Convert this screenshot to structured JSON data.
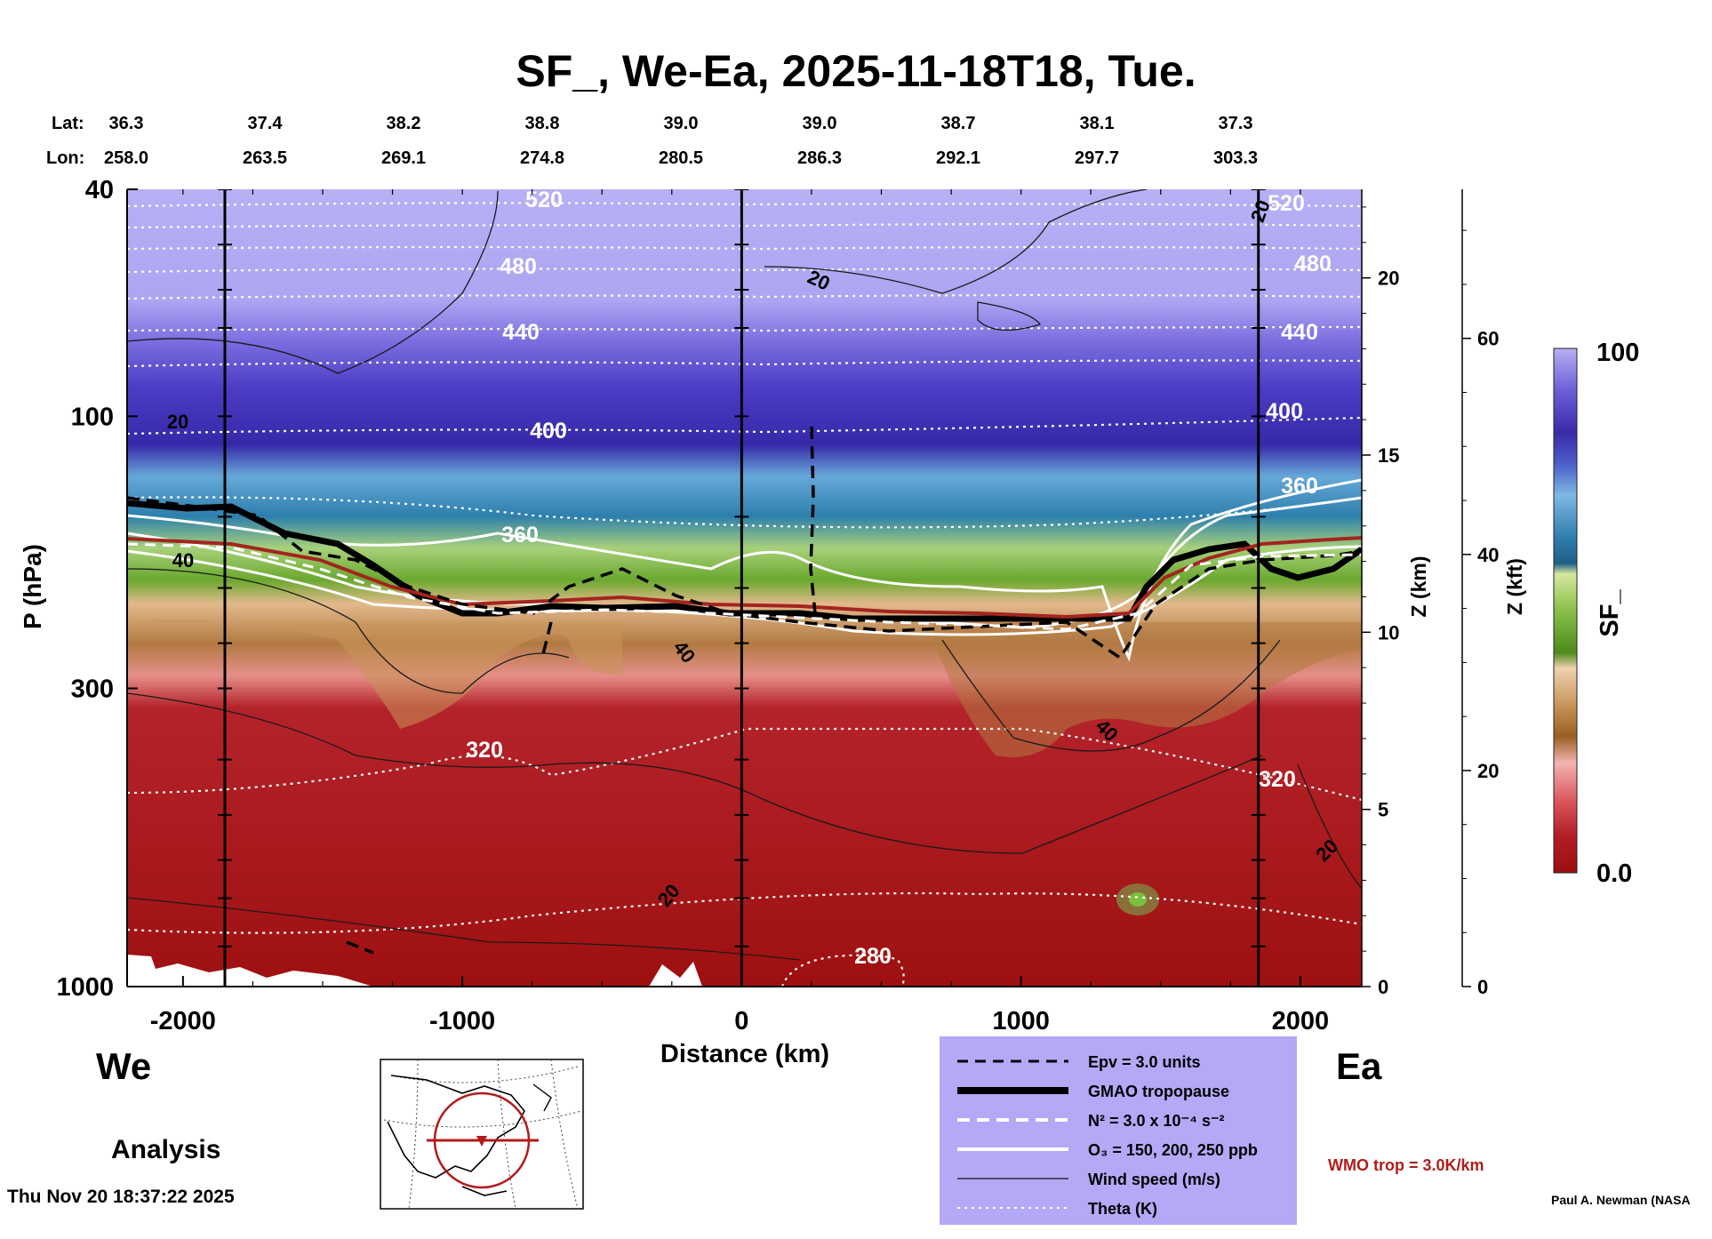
{
  "chart_data": {
    "type": "cross-section",
    "title": "SF_, We-Ea, 2025-11-18T18, Tue.",
    "xlabel": "Distance (km)",
    "ylabel": "P (hPa)",
    "xlim": [
      -2200,
      2220
    ],
    "ylim_hpa": [
      1000,
      40
    ],
    "yscale": "log",
    "x_ticks": [
      -2000,
      -1000,
      0,
      1000,
      2000
    ],
    "x_tick_labels": [
      "-2000",
      "-1000",
      "0",
      "1000",
      "2000"
    ],
    "y_ticks": [
      40,
      100,
      300,
      1000
    ],
    "y_tick_labels": [
      "40",
      "100",
      "300",
      "1000"
    ],
    "vertical_lines_km": [
      -1850,
      0,
      1850
    ],
    "lat_label": "Lat:",
    "lon_label": "Lon:",
    "lat_values": [
      "36.3",
      "37.4",
      "38.2",
      "38.8",
      "39.0",
      "39.0",
      "38.7",
      "38.1",
      "37.3"
    ],
    "lon_values": [
      "258.0",
      "263.5",
      "269.1",
      "274.8",
      "280.5",
      "286.3",
      "292.1",
      "297.7",
      "303.3"
    ],
    "z_km_axis": {
      "label": "Z (km)",
      "ticks": [
        0,
        5,
        10,
        15,
        20
      ]
    },
    "z_kft_axis": {
      "label": "Z (kft)",
      "ticks": [
        0,
        20,
        40,
        60
      ]
    },
    "colorbar": {
      "label": "SF_",
      "min_label": "0.0",
      "max_label": "100",
      "min": 0,
      "max": 100
    },
    "theta_labels": [
      "520",
      "480",
      "440",
      "400",
      "360",
      "320",
      "280",
      "520",
      "480",
      "440",
      "400",
      "360",
      "320"
    ],
    "wind_labels": [
      "20",
      "20",
      "40",
      "40",
      "40",
      "20",
      "20",
      "20"
    ],
    "legend": [
      {
        "label": "Epv = 3.0 units",
        "style": "black-dashed"
      },
      {
        "label": "GMAO tropopause",
        "style": "black-thick"
      },
      {
        "label": "N² = 3.0 x 10⁻⁴ s⁻²",
        "style": "white-dashed"
      },
      {
        "label": "O₃ = 150, 200, 250 ppb",
        "style": "white-solid"
      },
      {
        "label": "Wind speed (m/s)",
        "style": "black-thin"
      },
      {
        "label": "Theta (K)",
        "style": "white-dotted"
      }
    ],
    "wmo_note": "WMO trop = 3.0K/km"
  },
  "labels": {
    "west": "We",
    "east": "Ea",
    "analysis": "Analysis",
    "timestamp": "Thu Nov 20 18:37:22 2025",
    "credit": "Paul A. Newman (NASA"
  },
  "colors": {
    "bg": "#ffffff",
    "legend_bg": "#b3a9f6",
    "wmo": "#b01c1c",
    "tropopause_red": "#a3251e"
  }
}
